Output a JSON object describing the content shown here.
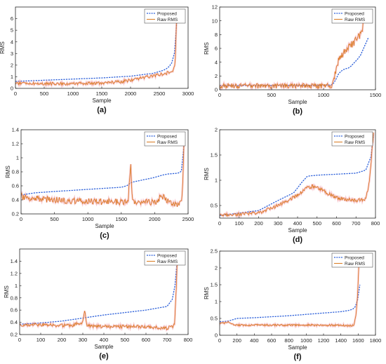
{
  "colors": {
    "proposed": "#2b5fd9",
    "raw": "#d97a1e",
    "raw_glow": "#f08a9a",
    "axis": "#262626"
  },
  "chart_data": [
    {
      "type": "line",
      "panel_label": "(a)",
      "xlabel": "Sample",
      "ylabel": "RMS",
      "xlim": [
        0,
        3000
      ],
      "ylim": [
        0,
        7
      ],
      "xticks": [
        0,
        500,
        1000,
        1500,
        2000,
        2500,
        3000
      ],
      "yticks": [
        0,
        1,
        2,
        3,
        4,
        5,
        6
      ],
      "legend": "top-right",
      "series": [
        {
          "name": "Proposed",
          "key": "proposed",
          "x": [
            0,
            500,
            1000,
            1500,
            2000,
            2400,
            2600,
            2700,
            2750,
            2790,
            2810
          ],
          "y": [
            0.6,
            0.7,
            0.8,
            0.9,
            1.05,
            1.3,
            1.6,
            2.0,
            2.6,
            4.0,
            6.2
          ]
        },
        {
          "name": "Raw RMS",
          "key": "raw",
          "x": [
            0,
            500,
            1000,
            1500,
            1800,
            2000,
            2200,
            2400,
            2500,
            2600,
            2700,
            2750,
            2780,
            2800,
            2810
          ],
          "y": [
            0.45,
            0.4,
            0.4,
            0.45,
            0.55,
            0.7,
            0.9,
            1.1,
            1.2,
            1.3,
            1.4,
            1.6,
            2.5,
            6.0,
            6.4
          ],
          "noise": 0.12
        }
      ]
    },
    {
      "type": "line",
      "panel_label": "(b)",
      "xlabel": "Sample",
      "ylabel": "RMS",
      "xlim": [
        0,
        1500
      ],
      "ylim": [
        0,
        12
      ],
      "xticks": [
        0,
        500,
        1000,
        1500
      ],
      "yticks": [
        0,
        2,
        4,
        6,
        8,
        10,
        12
      ],
      "legend": "top-right",
      "series": [
        {
          "name": "Proposed",
          "key": "proposed",
          "x": [
            0,
            500,
            1000,
            1080,
            1100,
            1130,
            1150,
            1200,
            1250,
            1300,
            1350,
            1400,
            1430
          ],
          "y": [
            0.6,
            0.62,
            0.65,
            0.7,
            1.0,
            1.8,
            2.5,
            3.0,
            3.2,
            4.0,
            4.8,
            6.5,
            7.5
          ]
        },
        {
          "name": "Raw RMS",
          "key": "raw",
          "x": [
            0,
            500,
            1000,
            1080,
            1100,
            1130,
            1150,
            1200,
            1250,
            1300,
            1350,
            1400,
            1430
          ],
          "y": [
            0.55,
            0.55,
            0.55,
            0.6,
            1.5,
            3.5,
            4.5,
            5.5,
            6.2,
            7.0,
            8.0,
            10.0,
            11.0
          ],
          "noise": 0.35
        }
      ]
    },
    {
      "type": "line",
      "panel_label": "(c)",
      "xlabel": "Sample",
      "ylabel": "RMS",
      "xlim": [
        0,
        2500
      ],
      "ylim": [
        0.2,
        1.4
      ],
      "xticks": [
        0,
        500,
        1000,
        1500,
        2000,
        2500
      ],
      "yticks": [
        0.2,
        0.4,
        0.6,
        0.8,
        1,
        1.2,
        1.4
      ],
      "legend": "top-right",
      "series": [
        {
          "name": "Proposed",
          "key": "proposed",
          "x": [
            0,
            200,
            500,
            1000,
            1500,
            1580,
            1650,
            1800,
            2000,
            2100,
            2200,
            2350,
            2420,
            2440
          ],
          "y": [
            0.47,
            0.5,
            0.52,
            0.55,
            0.58,
            0.6,
            0.65,
            0.68,
            0.72,
            0.75,
            0.77,
            0.78,
            0.82,
            1.2
          ]
        },
        {
          "name": "Raw RMS",
          "key": "raw",
          "x": [
            0,
            200,
            500,
            1000,
            1500,
            1600,
            1640,
            1660,
            1700,
            2000,
            2100,
            2300,
            2400,
            2420,
            2440
          ],
          "y": [
            0.45,
            0.42,
            0.4,
            0.38,
            0.37,
            0.36,
            0.92,
            0.45,
            0.38,
            0.36,
            0.45,
            0.34,
            0.35,
            0.6,
            1.3
          ],
          "noise": 0.04
        }
      ]
    },
    {
      "type": "line",
      "panel_label": "(d)",
      "xlabel": "Sample",
      "ylabel": "RMS",
      "xlim": [
        0,
        800
      ],
      "ylim": [
        0.25,
        2
      ],
      "xticks": [
        0,
        100,
        200,
        300,
        400,
        500,
        600,
        700,
        800
      ],
      "yticks": [
        0.5,
        1,
        1.5,
        2
      ],
      "legend": "top-right",
      "series": [
        {
          "name": "Proposed",
          "key": "proposed",
          "x": [
            0,
            100,
            200,
            300,
            380,
            420,
            450,
            500,
            600,
            700,
            750,
            780,
            790
          ],
          "y": [
            0.3,
            0.35,
            0.4,
            0.6,
            0.75,
            0.95,
            1.08,
            1.1,
            1.12,
            1.14,
            1.2,
            1.5,
            1.9
          ]
        },
        {
          "name": "Raw RMS",
          "key": "raw",
          "x": [
            0,
            100,
            200,
            300,
            400,
            450,
            480,
            550,
            600,
            700,
            750,
            770,
            790
          ],
          "y": [
            0.3,
            0.33,
            0.35,
            0.5,
            0.7,
            0.85,
            0.88,
            0.75,
            0.65,
            0.6,
            0.62,
            1.0,
            1.95
          ],
          "noise": 0.03
        }
      ]
    },
    {
      "type": "line",
      "panel_label": "(e)",
      "xlabel": "Sample",
      "ylabel": "RMS",
      "xlim": [
        0,
        800
      ],
      "ylim": [
        0.2,
        1.6
      ],
      "xticks": [
        0,
        100,
        200,
        300,
        400,
        500,
        600,
        700,
        800
      ],
      "yticks": [
        0.2,
        0.4,
        0.6,
        0.8,
        1,
        1.2,
        1.4
      ],
      "legend": "top-right",
      "series": [
        {
          "name": "Proposed",
          "key": "proposed",
          "x": [
            0,
            100,
            200,
            300,
            400,
            500,
            600,
            700,
            730,
            745,
            750
          ],
          "y": [
            0.37,
            0.39,
            0.42,
            0.47,
            0.52,
            0.56,
            0.6,
            0.66,
            0.8,
            1.2,
            1.5
          ]
        },
        {
          "name": "Raw RMS",
          "key": "raw",
          "x": [
            0,
            100,
            200,
            250,
            300,
            310,
            320,
            400,
            500,
            600,
            700,
            735,
            745,
            750
          ],
          "y": [
            0.36,
            0.36,
            0.35,
            0.35,
            0.4,
            0.6,
            0.34,
            0.33,
            0.33,
            0.33,
            0.3,
            0.35,
            1.0,
            1.55
          ],
          "noise": 0.025
        }
      ]
    },
    {
      "type": "line",
      "panel_label": "(f)",
      "xlabel": "Sample",
      "ylabel": "RMS",
      "xlim": [
        0,
        1800
      ],
      "ylim": [
        0,
        2.5
      ],
      "xticks": [
        0,
        200,
        400,
        600,
        800,
        1000,
        1200,
        1400,
        1600,
        1800
      ],
      "yticks": [
        0,
        0.5,
        1,
        1.5,
        2,
        2.5
      ],
      "legend": "top-right",
      "series": [
        {
          "name": "Proposed",
          "key": "proposed",
          "x": [
            0,
            100,
            200,
            400,
            600,
            800,
            1000,
            1200,
            1400,
            1500,
            1560,
            1600,
            1620
          ],
          "y": [
            0.4,
            0.42,
            0.5,
            0.52,
            0.55,
            0.58,
            0.62,
            0.66,
            0.7,
            0.74,
            0.8,
            1.1,
            1.5
          ]
        },
        {
          "name": "Raw RMS",
          "key": "raw",
          "x": [
            0,
            100,
            200,
            400,
            600,
            800,
            1000,
            1200,
            1400,
            1500,
            1550,
            1580,
            1600,
            1610
          ],
          "y": [
            0.35,
            0.38,
            0.3,
            0.3,
            0.3,
            0.3,
            0.3,
            0.3,
            0.3,
            0.28,
            0.3,
            0.7,
            1.5,
            2.3
          ],
          "noise": 0.025
        }
      ]
    }
  ]
}
